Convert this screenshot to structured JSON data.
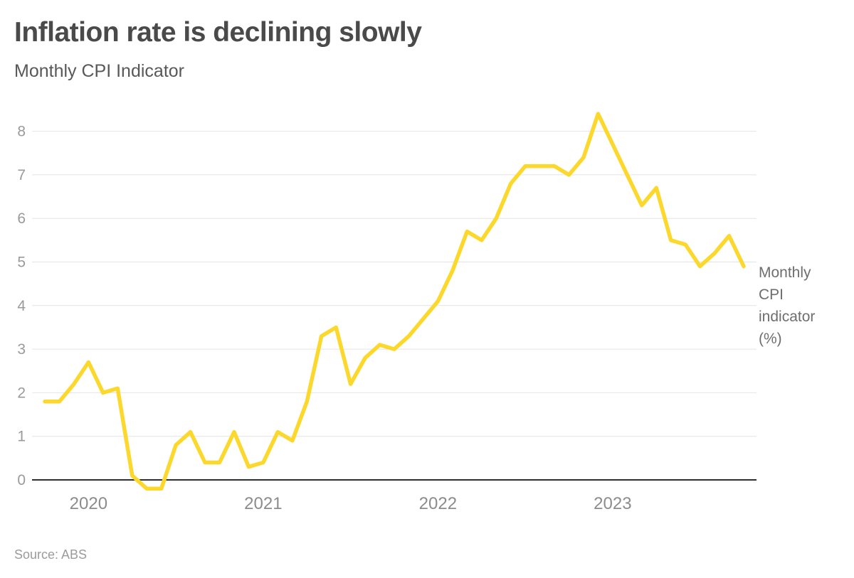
{
  "header": {
    "title": "Inflation rate is declining slowly",
    "subtitle": "Monthly CPI Indicator"
  },
  "annotation": {
    "series_label": "Monthly CPI indicator (%)"
  },
  "footer": {
    "source": "Source: ABS"
  },
  "colors": {
    "line": "#FCD82C",
    "gridline": "#e4e4e4",
    "zero_axis": "#2e2e2e",
    "y_tick_label": "#9a9a9a",
    "x_tick_label": "#8c8c8c",
    "title": "#4a4a4a",
    "subtitle": "#585858",
    "annotation": "#6e6e6e",
    "source": "#9b9b9b",
    "background": "#ffffff"
  },
  "chart_data": {
    "type": "line",
    "title": "Inflation rate is declining slowly",
    "subtitle": "Monthly CPI Indicator",
    "series_label": "Monthly CPI indicator (%)",
    "source": "Source: ABS",
    "grid": "horizontal",
    "legend_position": "right-of-line-end",
    "x": [
      "Oct 2019",
      "Nov 2019",
      "Dec 2019",
      "Jan 2020",
      "Feb 2020",
      "Mar 2020",
      "Apr 2020",
      "May 2020",
      "Jun 2020",
      "Jul 2020",
      "Aug 2020",
      "Sep 2020",
      "Oct 2020",
      "Nov 2020",
      "Dec 2020",
      "Jan 2021",
      "Feb 2021",
      "Mar 2021",
      "Apr 2021",
      "May 2021",
      "Jun 2021",
      "Jul 2021",
      "Aug 2021",
      "Sep 2021",
      "Oct 2021",
      "Nov 2021",
      "Dec 2021",
      "Jan 2022",
      "Feb 2022",
      "Mar 2022",
      "Apr 2022",
      "May 2022",
      "Jun 2022",
      "Jul 2022",
      "Aug 2022",
      "Sep 2022",
      "Oct 2022",
      "Nov 2022",
      "Dec 2022",
      "Jan 2023",
      "Feb 2023",
      "Mar 2023",
      "Apr 2023",
      "May 2023",
      "Jun 2023",
      "Jul 2023",
      "Aug 2023",
      "Sep 2023",
      "Oct 2023"
    ],
    "values": [
      1.8,
      1.8,
      2.2,
      2.7,
      2.0,
      2.1,
      0.1,
      -0.2,
      -0.2,
      0.8,
      1.1,
      0.4,
      0.4,
      1.1,
      0.3,
      0.4,
      1.1,
      0.9,
      1.8,
      3.3,
      3.5,
      2.2,
      2.8,
      3.1,
      3.0,
      3.3,
      3.7,
      4.1,
      4.8,
      5.7,
      5.5,
      6.0,
      6.8,
      7.2,
      7.2,
      7.2,
      7.0,
      7.4,
      8.4,
      7.7,
      7.0,
      6.3,
      6.7,
      5.5,
      5.4,
      4.9,
      5.2,
      5.6,
      4.9
    ],
    "y_ticks": [
      0,
      1,
      2,
      3,
      4,
      5,
      6,
      7,
      8
    ],
    "ylim": [
      -0.35,
      8.6
    ],
    "x_tick_labels": [
      "2020",
      "2021",
      "2022",
      "2023"
    ],
    "x_tick_month_indices": [
      3,
      15,
      27,
      39
    ]
  }
}
